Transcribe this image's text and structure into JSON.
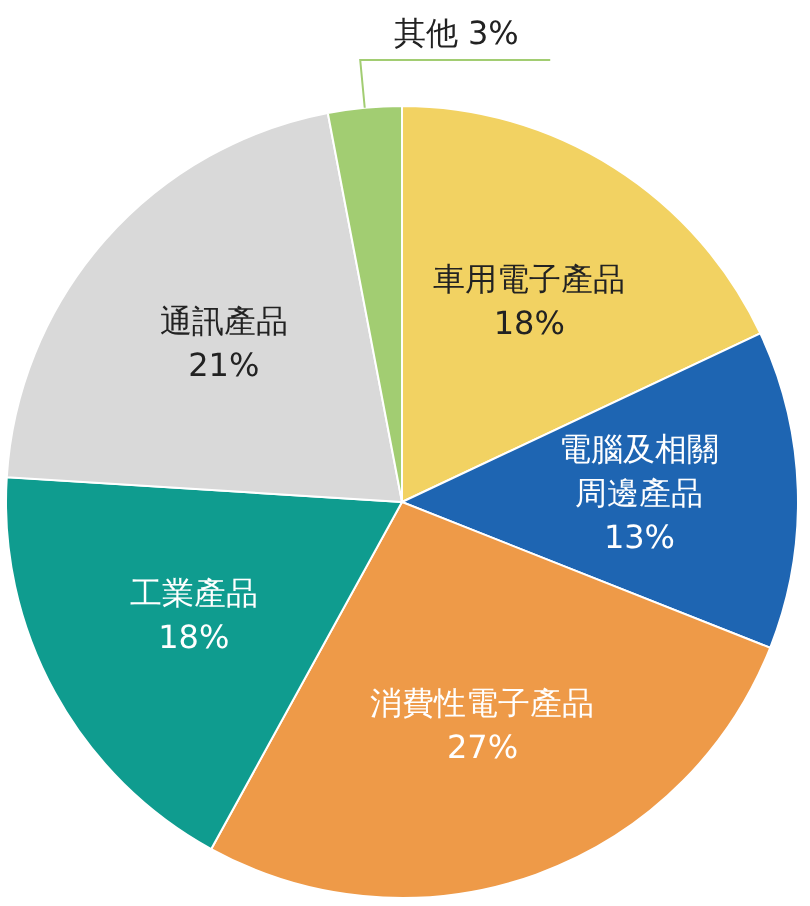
{
  "chart_data": {
    "type": "pie",
    "categories": [
      "車用電子產品",
      "電腦及相關周邊產品",
      "消費性電子產品",
      "工業產品",
      "通訊產品",
      "其他"
    ],
    "values": [
      18,
      13,
      27,
      18,
      21,
      3
    ],
    "colors": [
      "#f2d262",
      "#1e65b2",
      "#ee9a48",
      "#0f9c8f",
      "#d9d9d9",
      "#a2cd72"
    ],
    "value_labels": [
      "18%",
      "13%",
      "27%",
      "18%",
      "21%",
      "3%"
    ]
  }
}
